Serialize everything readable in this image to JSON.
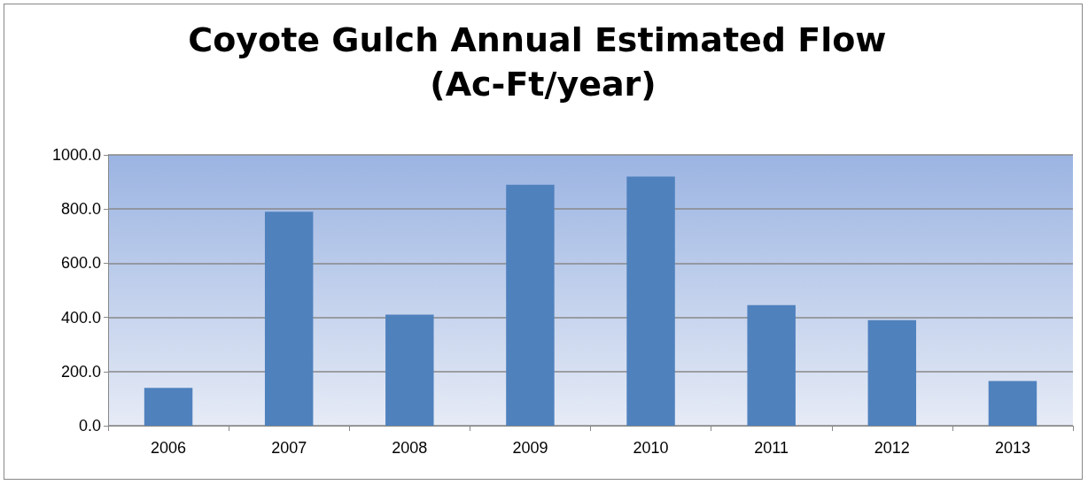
{
  "chart_data": {
    "type": "bar",
    "title": "Coyote Gulch Annual Estimated Flow (Ac-Ft/year)",
    "categories": [
      "2006",
      "2007",
      "2008",
      "2009",
      "2010",
      "2011",
      "2012",
      "2013"
    ],
    "values": [
      140,
      790,
      410,
      890,
      920,
      445,
      390,
      165
    ],
    "color": "#4f81bd",
    "ylim": [
      0,
      1000
    ],
    "yticks": [
      {
        "value": 0,
        "label": "0.0"
      },
      {
        "value": 200,
        "label": "200.0"
      },
      {
        "value": 400,
        "label": "400.0"
      },
      {
        "value": 600,
        "label": "600.0"
      },
      {
        "value": 800,
        "label": "800.0"
      },
      {
        "value": 1000,
        "label": "1000.0"
      }
    ],
    "grid": "y"
  }
}
